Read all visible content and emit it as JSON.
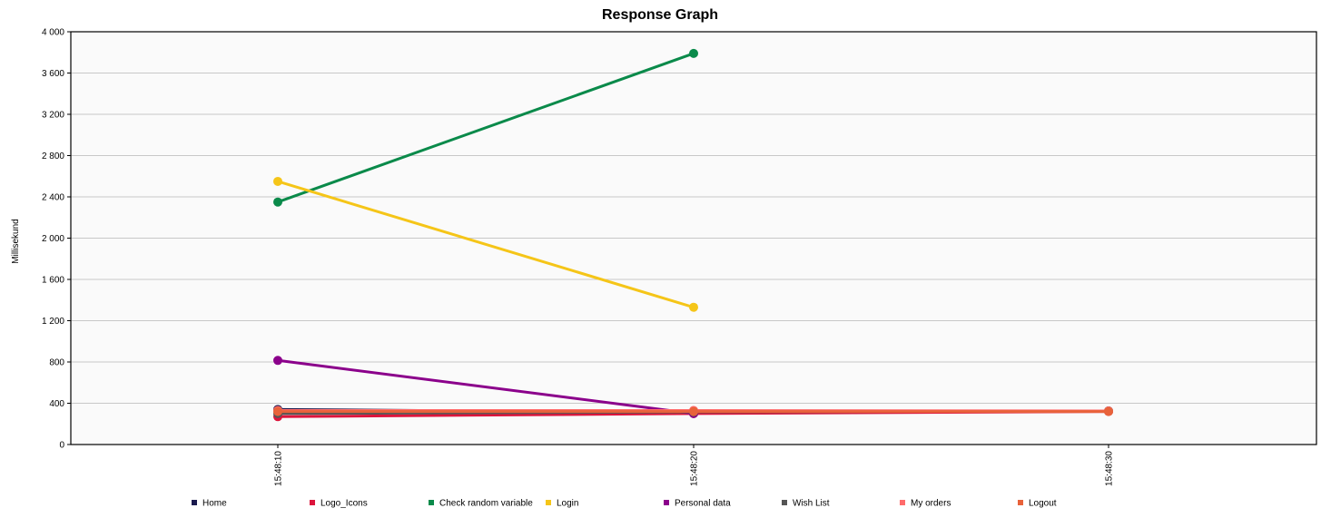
{
  "chart_data": {
    "type": "line",
    "title": "Response Graph",
    "xlabel": "",
    "ylabel": "Millisekund",
    "ylim": [
      0,
      4000
    ],
    "yticks": [
      0,
      400,
      800,
      1200,
      1600,
      2000,
      2400,
      2800,
      3200,
      3600,
      4000
    ],
    "ytick_labels": [
      "0",
      "400",
      "800",
      "1 200",
      "1 600",
      "2 000",
      "2 400",
      "2 800",
      "3 200",
      "3 600",
      "4 000"
    ],
    "x_categories": [
      "15:48:10",
      "15:48:20",
      "15:48:30"
    ],
    "grid": true,
    "legend_position": "bottom",
    "series": [
      {
        "name": "Home",
        "color": "#1a1a4e",
        "x": [
          "15:48:10",
          "15:48:20",
          "15:48:30"
        ],
        "values": [
          340,
          310,
          325
        ]
      },
      {
        "name": "Logo_Icons",
        "color": "#dc143c",
        "x": [
          "15:48:10",
          "15:48:20",
          "15:48:30"
        ],
        "values": [
          270,
          300,
          320
        ]
      },
      {
        "name": "Check random variable",
        "color": "#0a8a4a",
        "x": [
          "15:48:10",
          "15:48:20"
        ],
        "values": [
          2350,
          3790
        ]
      },
      {
        "name": "Login",
        "color": "#f5c518",
        "x": [
          "15:48:10",
          "15:48:20"
        ],
        "values": [
          2550,
          1330
        ]
      },
      {
        "name": "Personal data",
        "color": "#8b008b",
        "x": [
          "15:48:10",
          "15:48:20"
        ],
        "values": [
          815,
          300
        ]
      },
      {
        "name": "Wish List",
        "color": "#555555",
        "x": [
          "15:48:10",
          "15:48:20",
          "15:48:30"
        ],
        "values": [
          300,
          315,
          325
        ]
      },
      {
        "name": "My orders",
        "color": "#ff6b6b",
        "x": [
          "15:48:10",
          "15:48:20",
          "15:48:30"
        ],
        "values": [
          330,
          330,
          325
        ]
      },
      {
        "name": "Logout",
        "color": "#e8623a",
        "x": [
          "15:48:10",
          "15:48:20",
          "15:48:30"
        ],
        "values": [
          320,
          320,
          320
        ]
      }
    ]
  }
}
